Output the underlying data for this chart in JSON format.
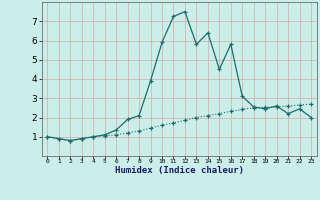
{
  "xlabel": "Humidex (Indice chaleur)",
  "background_color": "#cceee8",
  "grid_color": "#aad4cc",
  "line_color": "#1a6e6e",
  "xlim": [
    -0.5,
    23.5
  ],
  "ylim": [
    0.0,
    8.0
  ],
  "yticks": [
    1,
    2,
    3,
    4,
    5,
    6,
    7
  ],
  "xticks": [
    0,
    1,
    2,
    3,
    4,
    5,
    6,
    7,
    8,
    9,
    10,
    11,
    12,
    13,
    14,
    15,
    16,
    17,
    18,
    19,
    20,
    21,
    22,
    23
  ],
  "line1_x": [
    0,
    1,
    2,
    3,
    4,
    5,
    6,
    7,
    8,
    9,
    10,
    11,
    12,
    13,
    14,
    15,
    16,
    17,
    18,
    19,
    20,
    21,
    22,
    23
  ],
  "line1_y": [
    1.0,
    0.9,
    0.8,
    0.9,
    1.0,
    1.05,
    1.1,
    1.2,
    1.3,
    1.45,
    1.6,
    1.72,
    1.85,
    2.0,
    2.1,
    2.2,
    2.32,
    2.42,
    2.5,
    2.52,
    2.56,
    2.6,
    2.65,
    2.7
  ],
  "line2_x": [
    0,
    1,
    2,
    3,
    4,
    5,
    6,
    7,
    8,
    9,
    10,
    11,
    12,
    13,
    14,
    15,
    16,
    17,
    18,
    19,
    20,
    21,
    22,
    23
  ],
  "line2_y": [
    1.0,
    0.9,
    0.8,
    0.9,
    1.0,
    1.1,
    1.35,
    1.9,
    2.1,
    3.9,
    5.9,
    7.25,
    7.5,
    5.8,
    6.4,
    4.5,
    5.8,
    3.1,
    2.55,
    2.45,
    2.6,
    2.2,
    2.45,
    2.0
  ]
}
